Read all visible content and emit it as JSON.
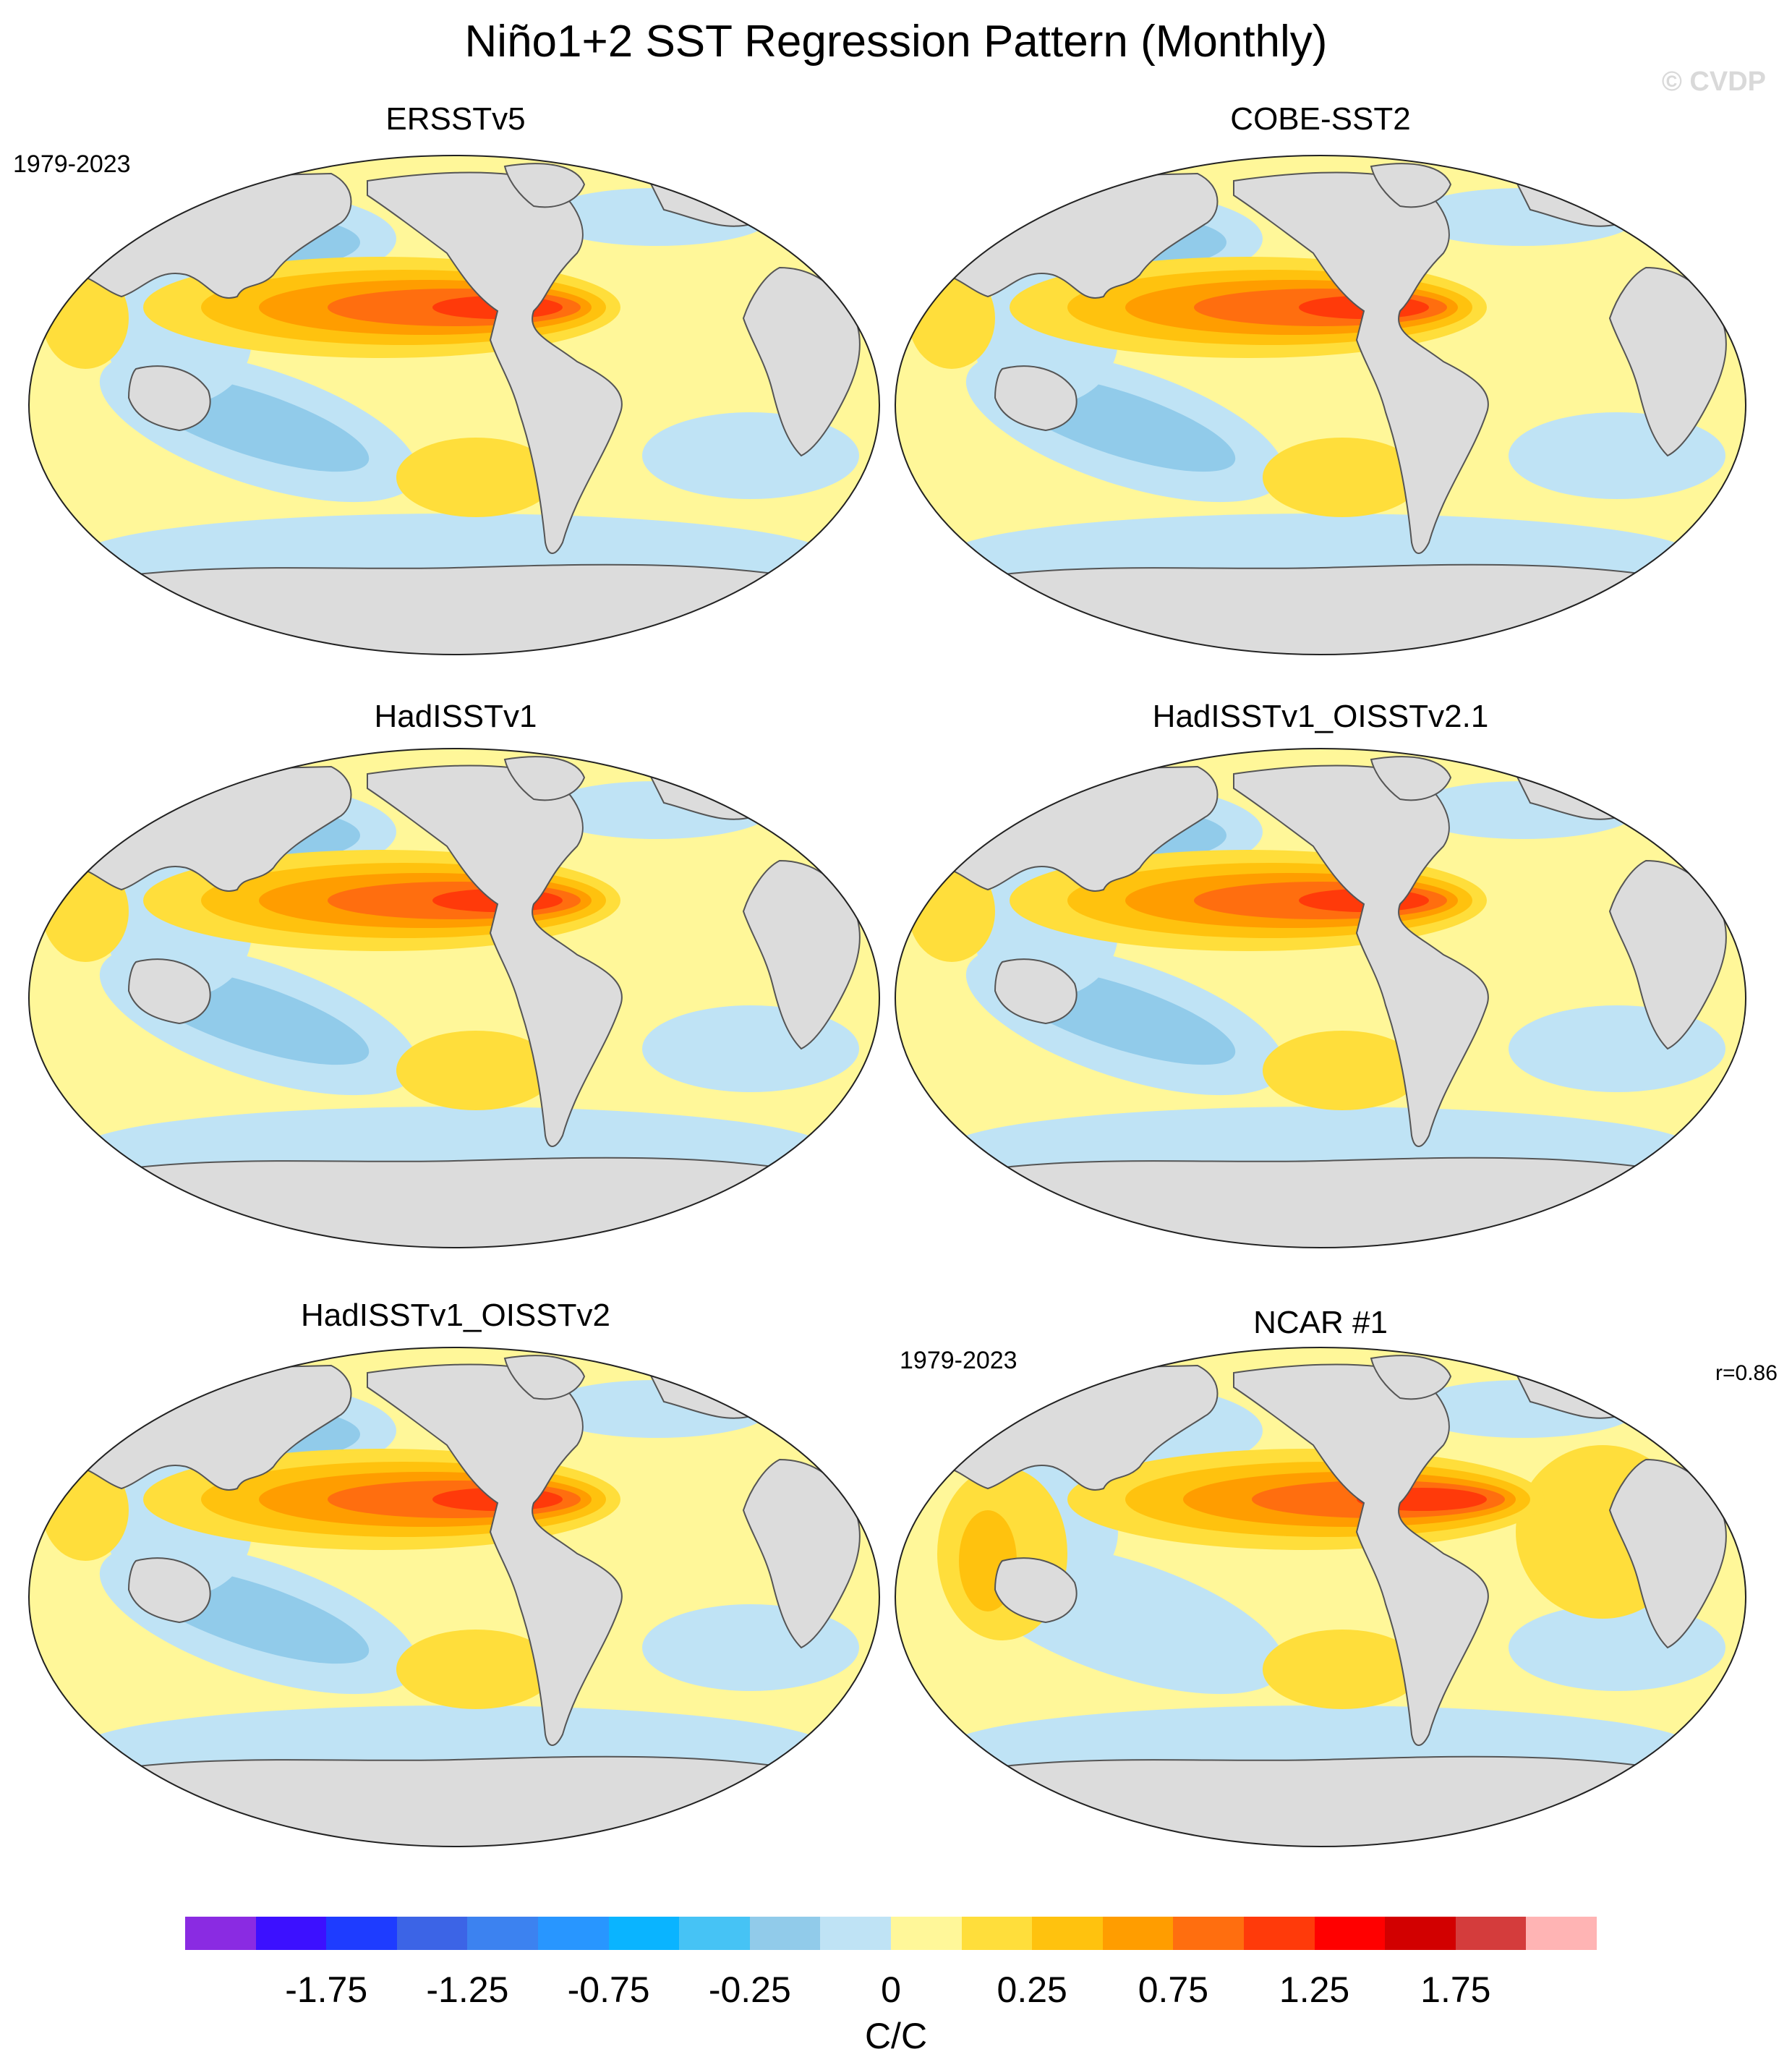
{
  "title": "Niño1+2 SST Regression Pattern (Monthly)",
  "watermark": "© CVDP",
  "colors": {
    "land": "#dcdcdc",
    "coast": "#555555",
    "outline": "#222222",
    "pale_blue": "#bfe3f5",
    "light_blue": "#91cbea",
    "mid_blue": "#41b8f5",
    "pale_yellow": "#fff799",
    "yellow": "#ffde3b",
    "gold": "#ffc20e",
    "orange": "#ff9d00",
    "dark_orange": "#ff6e0f",
    "red_orange": "#ff3a0a"
  },
  "panels": [
    {
      "title": "ERSSTv5",
      "period": "1979-2023",
      "corr": ""
    },
    {
      "title": "COBE-SST2",
      "period": "",
      "corr": ""
    },
    {
      "title": "HadISSTv1",
      "period": "",
      "corr": ""
    },
    {
      "title": "HadISSTv1_OISSTv2.1",
      "period": "",
      "corr": ""
    },
    {
      "title": "HadISSTv1_OISSTv2",
      "period": "",
      "corr": ""
    },
    {
      "title": "NCAR #1",
      "period": "1979-2023",
      "corr": "r=0.86"
    }
  ],
  "colorbar": {
    "units": "C/C",
    "colors": [
      "#8a2be2",
      "#3c10ff",
      "#1e3cff",
      "#3c64e6",
      "#3c82f0",
      "#2896ff",
      "#0ab4ff",
      "#46c3f5",
      "#91cbea",
      "#bfe3f5",
      "#fff799",
      "#ffde3b",
      "#ffc20e",
      "#ff9d00",
      "#ff6e0f",
      "#ff3a0a",
      "#ff0000",
      "#d20000",
      "#d43c3c",
      "#ffb4b4"
    ],
    "tick_labels": [
      "-1.75",
      "-1.25",
      "-0.75",
      "-0.25",
      "0",
      "0.25",
      "0.75",
      "1.25",
      "1.75"
    ],
    "tick_values": [
      -1.75,
      -1.25,
      -0.75,
      -0.25,
      0,
      0.25,
      0.75,
      1.25,
      1.75
    ],
    "levels": [
      -2.0,
      -1.75,
      -1.5,
      -1.25,
      -1.0,
      -0.75,
      -0.5,
      -0.25,
      -0.1,
      0,
      0.1,
      0.25,
      0.5,
      0.75,
      1.0,
      1.25,
      1.5,
      1.75,
      2.0
    ]
  }
}
